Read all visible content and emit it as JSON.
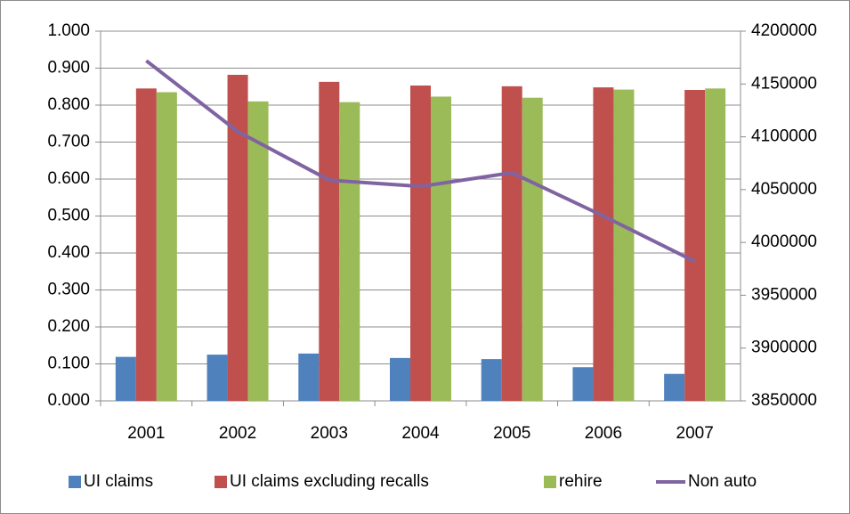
{
  "chart_data": {
    "type": "bar",
    "categories": [
      "2001",
      "2002",
      "2003",
      "2004",
      "2005",
      "2006",
      "2007"
    ],
    "series": [
      {
        "name": "UI claims",
        "color": "#4f81bd",
        "values": [
          0.119,
          0.125,
          0.128,
          0.116,
          0.113,
          0.091,
          0.073
        ]
      },
      {
        "name": "UI claims excluding recalls",
        "color": "#c0504d",
        "values": [
          0.845,
          0.882,
          0.863,
          0.853,
          0.851,
          0.848,
          0.841
        ]
      },
      {
        "name": "rehire",
        "color": "#9bbb59",
        "values": [
          0.835,
          0.81,
          0.808,
          0.823,
          0.82,
          0.842,
          0.845
        ]
      },
      {
        "name": "Non auto",
        "color": "#8064a2",
        "type": "line",
        "axis": "y2",
        "values": [
          4172000,
          4105000,
          4059000,
          4053000,
          4066000,
          4025000,
          3982000
        ]
      }
    ],
    "ylim": [
      0,
      1
    ],
    "yticks": [
      {
        "value": 0,
        "label": "0.000"
      },
      {
        "value": 0.1,
        "label": "0.100"
      },
      {
        "value": 0.2,
        "label": "0.200"
      },
      {
        "value": 0.3,
        "label": "0.300"
      },
      {
        "value": 0.4,
        "label": "0.400"
      },
      {
        "value": 0.5,
        "label": "0.500"
      },
      {
        "value": 0.6,
        "label": "0.600"
      },
      {
        "value": 0.7,
        "label": "0.700"
      },
      {
        "value": 0.8,
        "label": "0.800"
      },
      {
        "value": 0.9,
        "label": "0.900"
      },
      {
        "value": 1,
        "label": "1.000"
      }
    ],
    "y2lim": [
      3850000,
      4200000
    ],
    "y2ticks": [
      3850000,
      3900000,
      3950000,
      4000000,
      4050000,
      4100000,
      4150000,
      4200000
    ],
    "grid": true,
    "legend": "bottom"
  }
}
